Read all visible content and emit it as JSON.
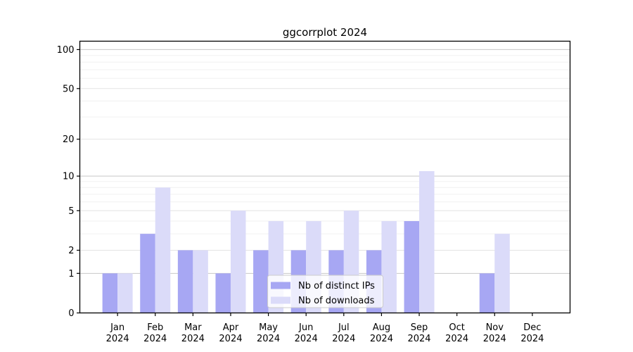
{
  "title": "ggcorrplot 2024",
  "chart_data": {
    "type": "bar",
    "title": "ggcorrplot 2024",
    "categories": [
      "Jan",
      "Feb",
      "Mar",
      "Apr",
      "May",
      "Jun",
      "Jul",
      "Aug",
      "Sep",
      "Oct",
      "Nov",
      "Dec"
    ],
    "category_year": "2024",
    "series": [
      {
        "name": "Nb of distinct IPs",
        "color": "#a7a7f3",
        "values": [
          1,
          3,
          2,
          1,
          2,
          2,
          2,
          2,
          4,
          0,
          1,
          0
        ]
      },
      {
        "name": "Nb of downloads",
        "color": "#dbdbf9",
        "values": [
          1,
          8,
          2,
          5,
          4,
          4,
          5,
          4,
          11,
          0,
          3,
          0
        ]
      }
    ],
    "yscale": "log1p",
    "ylim": [
      0,
      116
    ],
    "yticks": [
      0,
      1,
      2,
      5,
      10,
      20,
      50,
      100
    ],
    "grid_values": [
      1,
      2,
      3,
      4,
      5,
      6,
      7,
      8,
      9,
      10,
      20,
      30,
      40,
      50,
      60,
      70,
      80,
      90,
      100
    ],
    "grid_major_values": [
      1,
      10,
      100
    ],
    "grid_on": true,
    "legend_position": "lower-center",
    "colors": {
      "grid_major": "#c8c8c8",
      "grid_labeled": "#e4e4e4",
      "grid_minor": "#f0f0f0",
      "axis": "#000000",
      "legend_border": "#cccccc",
      "legend_background": "rgba(255,255,255,0.8)"
    }
  }
}
